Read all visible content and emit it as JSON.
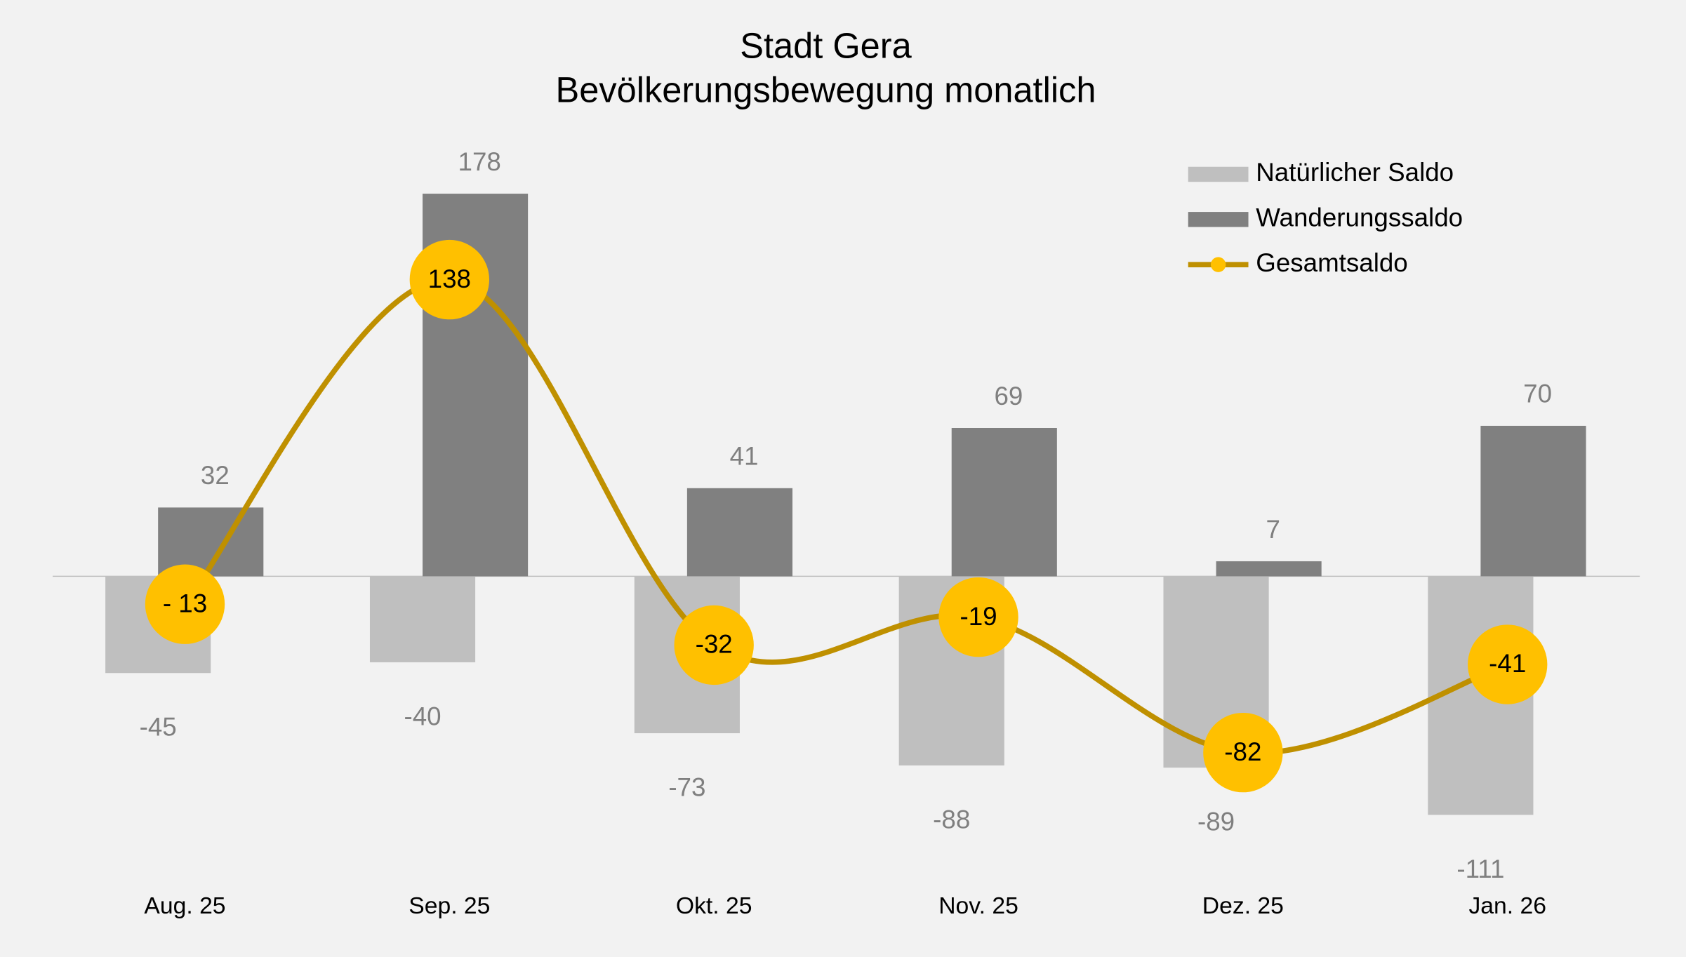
{
  "chart_data": {
    "type": "bar-line",
    "title": "Stadt Gera",
    "subtitle": "Bevölkerungsbewegung monatlich",
    "categories": [
      "Aug. 25",
      "Sep. 25",
      "Okt. 25",
      "Nov. 25",
      "Dez. 25",
      "Jan. 26"
    ],
    "legend": "top-right",
    "series": [
      {
        "name": "Natürlicher Saldo",
        "type": "bar",
        "color": "#bfbfbf",
        "values": [
          -45,
          -40,
          -73,
          -88,
          -89,
          -111
        ]
      },
      {
        "name": "Wanderungssaldo",
        "type": "bar",
        "color": "#808080",
        "values": [
          32,
          178,
          41,
          69,
          7,
          70
        ]
      },
      {
        "name": "Gesamtsaldo",
        "type": "line",
        "color": "#bf9000",
        "marker_color": "#ffc000",
        "values": [
          -13,
          138,
          -32,
          -19,
          -82,
          -41
        ],
        "value_labels": [
          "- 13",
          "138",
          "-32",
          "-19",
          "-82",
          "-41"
        ]
      }
    ]
  }
}
